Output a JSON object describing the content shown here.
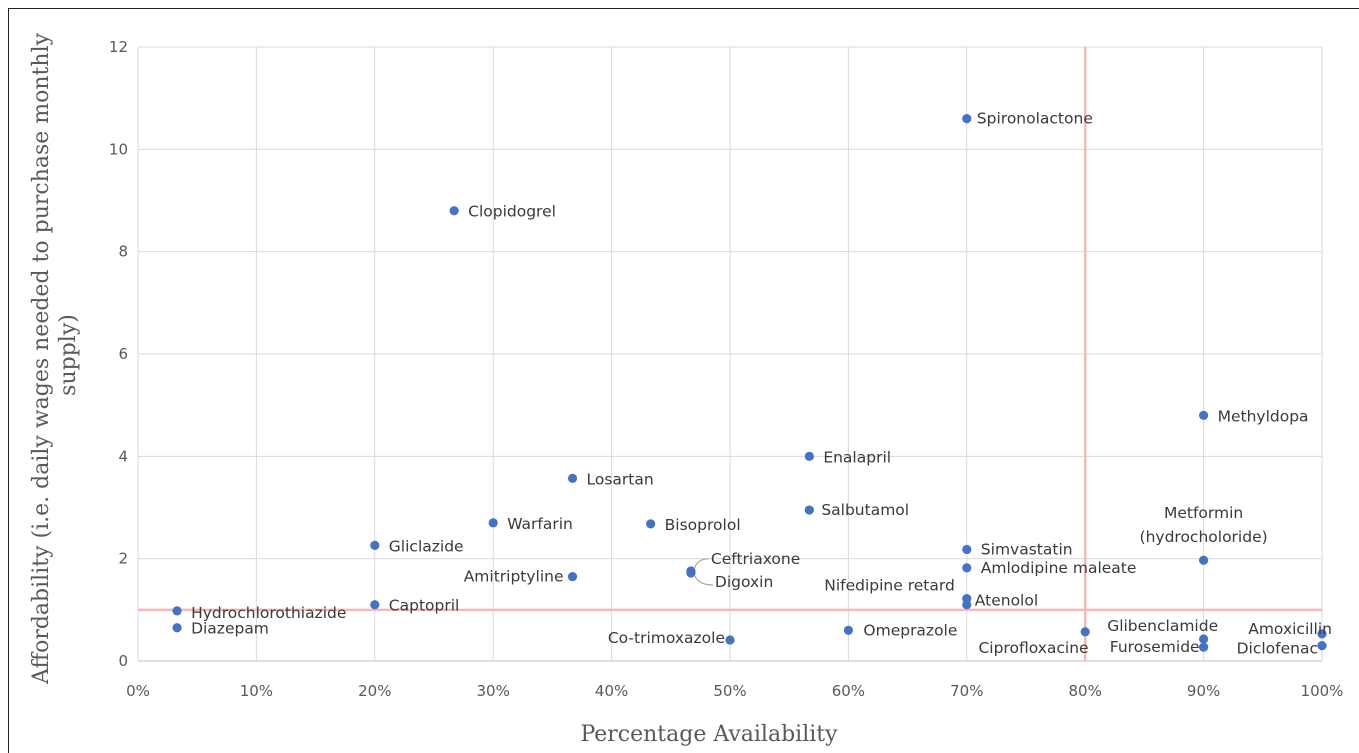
{
  "chart_data": {
    "type": "scatter",
    "xlabel": "Percentage Availability",
    "ylabel_lines": [
      "Affordability (i.e. daily wages needed to purchase monthly",
      "supply)"
    ],
    "xlim": [
      0,
      100
    ],
    "ylim": [
      0,
      12
    ],
    "x_ticks": [
      0,
      10,
      20,
      30,
      40,
      50,
      60,
      70,
      80,
      90,
      100
    ],
    "x_tick_labels": [
      "0%",
      "10%",
      "20%",
      "30%",
      "40%",
      "50%",
      "60%",
      "70%",
      "80%",
      "90%",
      "100%"
    ],
    "y_ticks": [
      0,
      2,
      4,
      6,
      8,
      10,
      12
    ],
    "y_tick_labels": [
      "0",
      "2",
      "4",
      "6",
      "8",
      "10",
      "12"
    ],
    "grid": true,
    "marker_color": "#4472c4",
    "reference_lines": {
      "color": "#f4b8b8",
      "x": 80,
      "y": 1
    },
    "points": [
      {
        "name": "Spironolactone",
        "x": 70,
        "y": 10.6
      },
      {
        "name": "Clopidogrel",
        "x": 26.7,
        "y": 8.8
      },
      {
        "name": "Methyldopa",
        "x": 90,
        "y": 4.8
      },
      {
        "name": "Enalapril",
        "x": 56.7,
        "y": 4.0
      },
      {
        "name": "Losartan",
        "x": 36.7,
        "y": 3.57
      },
      {
        "name": "Salbutamol",
        "x": 56.7,
        "y": 2.95
      },
      {
        "name": "Warfarin",
        "x": 30,
        "y": 2.7
      },
      {
        "name": "Bisoprolol",
        "x": 43.3,
        "y": 2.68
      },
      {
        "name": "Gliclazide",
        "x": 20,
        "y": 2.26
      },
      {
        "name": "Simvastatin",
        "x": 70,
        "y": 2.18
      },
      {
        "name": "Metformin (hydrocholoride)",
        "lines": [
          "Metformin",
          "(hydrocholoride)"
        ],
        "x": 90,
        "y": 1.97
      },
      {
        "name": "Amlodipine maleate",
        "x": 70,
        "y": 1.82
      },
      {
        "name": "Ceftriaxone",
        "x": 46.7,
        "y": 1.76
      },
      {
        "name": "Digoxin",
        "x": 46.7,
        "y": 1.72
      },
      {
        "name": "Amitriptyline",
        "x": 36.7,
        "y": 1.65
      },
      {
        "name": "Nifedipine retard",
        "x": 70,
        "y": 1.22
      },
      {
        "name": "Atenolol",
        "x": 70,
        "y": 1.1
      },
      {
        "name": "Captopril",
        "x": 20,
        "y": 1.1
      },
      {
        "name": "Hydrochlorothiazide",
        "x": 3.3,
        "y": 0.98
      },
      {
        "name": "Diazepam",
        "x": 3.3,
        "y": 0.65
      },
      {
        "name": "Omeprazole",
        "x": 60,
        "y": 0.6
      },
      {
        "name": "Glibenclamide",
        "x": 80,
        "y": 0.57
      },
      {
        "name": "Amoxicillin",
        "x": 100,
        "y": 0.53
      },
      {
        "name": "Co-trimoxazole",
        "x": 50,
        "y": 0.41
      },
      {
        "name": "Ciprofloxacine",
        "x": 90,
        "y": 0.43
      },
      {
        "name": "Furosemide",
        "x": 90,
        "y": 0.27
      },
      {
        "name": "Diclofenac",
        "x": 100,
        "y": 0.3
      }
    ]
  }
}
